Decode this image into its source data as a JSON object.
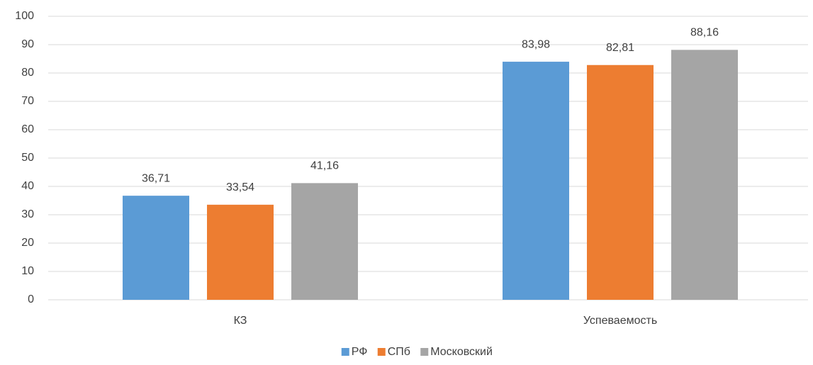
{
  "chart_data": {
    "type": "bar",
    "categories": [
      "КЗ",
      "Успеваемость"
    ],
    "series": [
      {
        "name": "РФ",
        "color": "#5b9bd5",
        "values": [
          36.71,
          83.98
        ],
        "value_labels": [
          "36,71",
          "83,98"
        ]
      },
      {
        "name": "СПб",
        "color": "#ed7d31",
        "values": [
          33.54,
          82.81
        ],
        "value_labels": [
          "33,54",
          "82,81"
        ]
      },
      {
        "name": "Московский",
        "color": "#a5a5a5",
        "values": [
          41.16,
          88.16
        ],
        "value_labels": [
          "41,16",
          "88,16"
        ]
      }
    ],
    "ylim": [
      0,
      100
    ],
    "yticks": [
      0,
      10,
      20,
      30,
      40,
      50,
      60,
      70,
      80,
      90,
      100
    ],
    "grid": true,
    "legend": "bottom"
  }
}
